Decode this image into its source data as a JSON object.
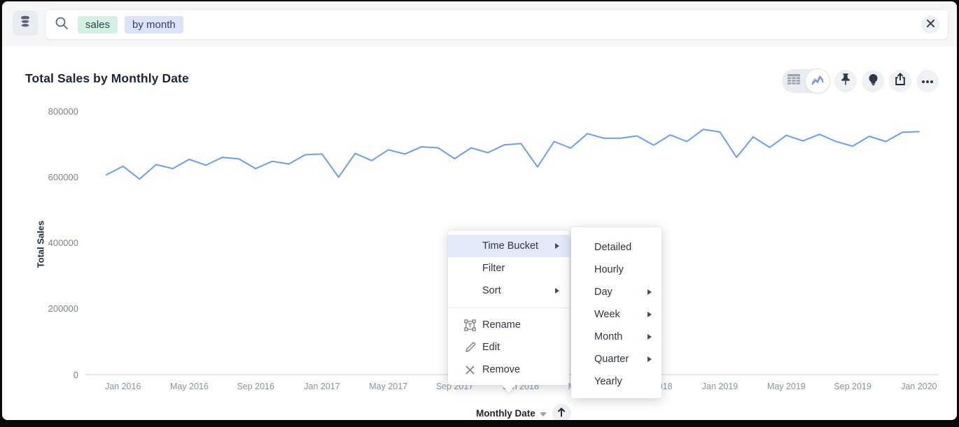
{
  "topbar": {
    "data_source_icon": "database-icon",
    "search_icon": "search-icon",
    "close_icon": "close-icon",
    "tokens": [
      {
        "text": "sales",
        "bg": "#d2f1e2"
      },
      {
        "text": "by month",
        "bg": "#dbe3f8"
      }
    ]
  },
  "card": {
    "title": "Total Sales by Monthly Date"
  },
  "toolbar": {
    "view_toggle": [
      {
        "name": "table-view",
        "icon": "table-icon",
        "selected": false
      },
      {
        "name": "chart-view",
        "icon": "line-chart-icon",
        "selected": true
      }
    ],
    "buttons": [
      {
        "name": "pin",
        "icon": "pin-icon"
      },
      {
        "name": "insights",
        "icon": "lightbulb-icon"
      },
      {
        "name": "share",
        "icon": "share-icon"
      },
      {
        "name": "more",
        "icon": "ellipsis-icon"
      }
    ]
  },
  "chart_data": {
    "type": "line",
    "title": "Total Sales by Monthly Date",
    "xlabel": "Monthly Date",
    "ylabel": "Total Sales",
    "series_name": "Total Sales",
    "line_color": "#6c9cf5",
    "grid": false,
    "legend": false,
    "ylim": [
      0,
      800000
    ],
    "y_ticks": [
      0,
      200000,
      400000,
      600000,
      800000
    ],
    "x_tick_labels": [
      "Jan 2016",
      "May 2016",
      "Sep 2016",
      "Jan 2017",
      "May 2017",
      "Sep 2017",
      "Jan 2018",
      "May 2018",
      "Sep 2018",
      "Jan 2019",
      "May 2019",
      "Sep 2019",
      "Jan 2020"
    ],
    "x_tick_first_index": 1,
    "x_tick_step": 4,
    "x": [
      "Dec 2015",
      "Jan 2016",
      "Feb 2016",
      "Mar 2016",
      "Apr 2016",
      "May 2016",
      "Jun 2016",
      "Jul 2016",
      "Aug 2016",
      "Sep 2016",
      "Oct 2016",
      "Nov 2016",
      "Dec 2016",
      "Jan 2017",
      "Feb 2017",
      "Mar 2017",
      "Apr 2017",
      "May 2017",
      "Jun 2017",
      "Jul 2017",
      "Aug 2017",
      "Sep 2017",
      "Oct 2017",
      "Nov 2017",
      "Dec 2017",
      "Jan 2018",
      "Feb 2018",
      "Mar 2018",
      "Apr 2018",
      "May 2018",
      "Jun 2018",
      "Jul 2018",
      "Aug 2018",
      "Sep 2018",
      "Oct 2018",
      "Nov 2018",
      "Dec 2018",
      "Jan 2019",
      "Feb 2019",
      "Mar 2019",
      "Apr 2019",
      "May 2019",
      "Jun 2019",
      "Jul 2019",
      "Aug 2019",
      "Sep 2019",
      "Oct 2019",
      "Nov 2019",
      "Dec 2019",
      "Jan 2020"
    ],
    "values": [
      607000,
      633000,
      594000,
      638000,
      626000,
      654000,
      636000,
      660000,
      655000,
      626000,
      648000,
      640000,
      668000,
      670000,
      600000,
      672000,
      650000,
      683000,
      670000,
      692000,
      689000,
      656000,
      689000,
      674000,
      698000,
      702000,
      631000,
      708000,
      688000,
      732000,
      718000,
      718000,
      725000,
      697000,
      728000,
      708000,
      745000,
      737000,
      660000,
      722000,
      690000,
      727000,
      710000,
      730000,
      708000,
      694000,
      724000,
      708000,
      736000,
      738000
    ]
  },
  "x_axis_control": {
    "label": "Monthly Date",
    "sort_icon": "sort-ascending-icon"
  },
  "context_menu": {
    "items": [
      {
        "label": "Time Bucket",
        "has_submenu": true,
        "highlighted": true
      },
      {
        "label": "Filter",
        "has_submenu": false
      },
      {
        "label": "Sort",
        "has_submenu": true
      },
      {
        "divider": true
      },
      {
        "label": "Rename",
        "icon": "rename-icon"
      },
      {
        "label": "Edit",
        "icon": "edit-icon"
      },
      {
        "label": "Remove",
        "icon": "remove-icon"
      }
    ]
  },
  "submenu": {
    "items": [
      {
        "label": "Detailed",
        "has_submenu": false
      },
      {
        "label": "Hourly",
        "has_submenu": false
      },
      {
        "label": "Day",
        "has_submenu": true
      },
      {
        "label": "Week",
        "has_submenu": true
      },
      {
        "label": "Month",
        "has_submenu": true
      },
      {
        "label": "Quarter",
        "has_submenu": true
      },
      {
        "label": "Yearly",
        "has_submenu": false
      }
    ]
  },
  "colors": {
    "accent_line": "#6c9cf5",
    "menu_highlight": "#e3e9f7",
    "token_green": "#d2f1e2",
    "token_blue": "#dbe3f8",
    "axis_line": "#dcdfe4"
  }
}
